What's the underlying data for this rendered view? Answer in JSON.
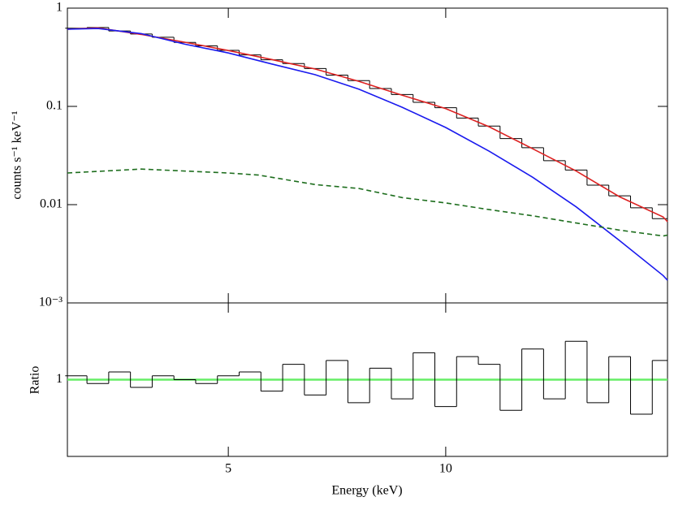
{
  "chart_data": [
    {
      "type": "line",
      "ylabel": "counts s⁻¹ keV⁻¹",
      "log_y": true,
      "xlim": [
        1.3,
        15.1
      ],
      "ylim": [
        0.001,
        1
      ],
      "yticks": [
        1,
        0.1,
        0.01,
        {
          "value": 0.001,
          "label": "10⁻³"
        }
      ],
      "series": [
        {
          "style": "steps",
          "color": "#000000",
          "x": [
            1.5,
            2,
            2.5,
            3,
            3.5,
            4,
            4.5,
            5,
            5.5,
            6,
            6.5,
            7,
            7.5,
            8,
            8.5,
            9,
            9.5,
            10,
            10.5,
            11,
            11.5,
            12,
            12.5,
            13,
            13.5,
            14,
            14.5,
            15
          ],
          "values": [
            0.625,
            0.635,
            0.585,
            0.545,
            0.505,
            0.448,
            0.413,
            0.372,
            0.334,
            0.298,
            0.273,
            0.243,
            0.208,
            0.183,
            0.152,
            0.132,
            0.11,
            0.097,
            0.076,
            0.063,
            0.047,
            0.038,
            0.028,
            0.0225,
            0.0158,
            0.0123,
            0.0093,
            0.0072
          ]
        },
        {
          "style": "solid",
          "color": "#dd2222",
          "x": [
            1.3,
            2,
            3,
            4,
            5,
            6,
            7,
            8,
            9,
            10,
            11,
            12,
            13,
            14,
            15,
            15.1
          ],
          "values": [
            0.61,
            0.63,
            0.54,
            0.45,
            0.37,
            0.3,
            0.24,
            0.18,
            0.13,
            0.095,
            0.062,
            0.037,
            0.022,
            0.012,
            0.0075,
            0.0067
          ]
        },
        {
          "style": "solid",
          "color": "#1a1aee",
          "x": [
            1.3,
            2,
            3,
            4,
            5,
            6,
            7,
            8,
            9,
            10,
            11,
            12,
            13,
            14,
            15,
            15.1
          ],
          "values": [
            0.61,
            0.62,
            0.55,
            0.43,
            0.35,
            0.27,
            0.21,
            0.15,
            0.098,
            0.061,
            0.035,
            0.019,
            0.0095,
            0.0043,
            0.0019,
            0.0017
          ]
        },
        {
          "style": "dashed",
          "color": "#1e6e1e",
          "x": [
            1.3,
            3,
            5,
            5.7,
            6,
            7,
            8,
            8.2,
            9,
            10,
            11,
            12,
            13,
            14,
            15,
            15.1
          ],
          "values": [
            0.021,
            0.023,
            0.021,
            0.02,
            0.019,
            0.016,
            0.0146,
            0.014,
            0.0118,
            0.0104,
            0.0089,
            0.0077,
            0.0065,
            0.0055,
            0.0048,
            0.0049
          ]
        }
      ]
    },
    {
      "type": "line",
      "xlabel": "Energy (keV)",
      "ylabel": "Ratio",
      "xlim": [
        1.3,
        15.1
      ],
      "ylim": [
        0.8,
        1.2
      ],
      "xticks": [
        5,
        10
      ],
      "yticks": [
        1
      ],
      "reference": {
        "value": 1,
        "color": "#66ee66"
      },
      "series": [
        {
          "style": "steps",
          "color": "#000000",
          "x": [
            1.5,
            2,
            2.5,
            3,
            3.5,
            4,
            4.5,
            5,
            5.5,
            6,
            6.5,
            7,
            7.5,
            8,
            8.5,
            9,
            9.5,
            10,
            10.5,
            11,
            11.5,
            12,
            12.5,
            13,
            13.5,
            14,
            14.5,
            15
          ],
          "values": [
            1.01,
            0.99,
            1.02,
            0.98,
            1.01,
            1.0,
            0.99,
            1.01,
            1.02,
            0.97,
            1.04,
            0.96,
            1.05,
            0.94,
            1.03,
            0.95,
            1.07,
            0.93,
            1.06,
            1.04,
            0.92,
            1.08,
            0.95,
            1.1,
            0.94,
            1.06,
            0.91,
            1.05
          ]
        }
      ]
    }
  ]
}
